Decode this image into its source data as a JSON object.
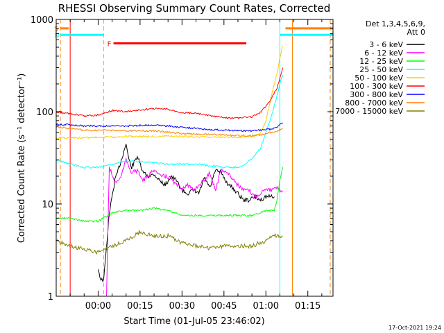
{
  "chart_data": {
    "type": "line",
    "title": "RHESSI Observing Summary Count Rates, Corrected",
    "xlabel": "Start Time (01-Jul-05 23:46:02)",
    "ylabel": "Corrected Count Rate (s⁻¹ detector⁻¹)",
    "ylog": true,
    "ylim": [
      1,
      1000
    ],
    "xlim_min": [
      -15,
      24
    ],
    "x_ticks": [
      {
        "t": 0,
        "label": "00:00"
      },
      {
        "t": 15,
        "label": "00:15"
      },
      {
        "t": 30,
        "label": "00:30"
      },
      {
        "t": 45,
        "label": "00:45"
      },
      {
        "t": 60,
        "label": "01:00"
      },
      {
        "t": 75,
        "label": "01:15"
      }
    ],
    "y_ticks": [
      {
        "v": 1,
        "label": "1"
      },
      {
        "v": 10,
        "label": "10"
      },
      {
        "v": 100,
        "label": "100"
      },
      {
        "v": 1000,
        "label": "1000"
      }
    ],
    "legend_title": [
      "Det 1,3,4,5,6,9,",
      "Att 0"
    ],
    "legend_position": "right",
    "timestamp": "17-Oct-2021 19:24",
    "flags": [
      {
        "label": "S",
        "color": "#ff8000",
        "t0": -13.5,
        "t1": -10.5,
        "level": 800
      },
      {
        "label": "N",
        "color": "#00ffff",
        "t0": -13.5,
        "t1": 2,
        "level": 680
      },
      {
        "label": "F",
        "color": "#ff0000",
        "t0": 5.5,
        "t1": 53,
        "level": 550
      },
      {
        "label": "",
        "color": "#ff8000",
        "t0": 67,
        "t1": 84,
        "level": 800
      },
      {
        "label": "",
        "color": "#00ffff",
        "t0": 65,
        "t1": 84,
        "level": 680
      }
    ],
    "vlines": [
      {
        "t": -13.5,
        "color": "#ff8000",
        "dash": true
      },
      {
        "t": -10,
        "color": "#ff0000",
        "dash": false
      },
      {
        "t": 2,
        "color": "#00ffff",
        "dash": true
      },
      {
        "t": 65,
        "color": "#00ffff",
        "dash": false
      },
      {
        "t": 69.5,
        "color": "#ff8000",
        "dash": false
      },
      {
        "t": 83,
        "color": "#ff8000",
        "dash": true
      }
    ],
    "series": [
      {
        "name": "3 - 6 keV",
        "color": "#000000",
        "x": [
          0,
          1,
          2,
          4,
          6,
          8,
          10,
          11,
          12,
          14,
          16,
          18,
          20,
          22,
          24,
          26,
          28,
          30,
          32,
          34,
          36,
          38,
          40,
          42,
          44,
          46,
          48,
          50,
          52,
          54,
          56,
          58,
          60,
          62,
          63
        ],
        "y": [
          2,
          1.5,
          1.5,
          8,
          18,
          28,
          45,
          30,
          25,
          33,
          22,
          20,
          21,
          18,
          16,
          20,
          18,
          14,
          13,
          14,
          13,
          19,
          15,
          23,
          22,
          17,
          15,
          13,
          11,
          11,
          12,
          11,
          12,
          12,
          12
        ]
      },
      {
        "name": "6 - 12 keV",
        "color": "#ff00ff",
        "x": [
          3,
          4,
          6,
          8,
          10,
          12,
          14,
          16,
          18,
          20,
          22,
          24,
          26,
          28,
          30,
          32,
          34,
          36,
          38,
          40,
          42,
          44,
          46,
          48,
          50,
          52,
          54,
          56,
          58,
          60,
          62,
          64,
          65,
          66
        ],
        "y": [
          1,
          25,
          17,
          19,
          30,
          22,
          23,
          18,
          20,
          24,
          20,
          20,
          19,
          16,
          15,
          16,
          14,
          16,
          18,
          22,
          14,
          24,
          22,
          19,
          16,
          14,
          14,
          12,
          13,
          15,
          14,
          15,
          14,
          14
        ]
      },
      {
        "name": "12 - 25 keV",
        "color": "#00ff00",
        "x": [
          -15,
          -10,
          -5,
          0,
          5,
          10,
          15,
          20,
          25,
          30,
          35,
          40,
          45,
          50,
          55,
          60,
          63,
          64,
          65,
          66
        ],
        "y": [
          7,
          7,
          6.5,
          6.5,
          8,
          8.5,
          8.5,
          9,
          8.5,
          7.5,
          7.5,
          7.5,
          7.5,
          7.5,
          7.5,
          8.5,
          8.5,
          11,
          18,
          25
        ]
      },
      {
        "name": "25 - 50 keV",
        "color": "#00ffff",
        "x": [
          -15,
          -10,
          -5,
          0,
          5,
          10,
          15,
          20,
          25,
          30,
          35,
          40,
          45,
          50,
          52,
          55,
          58,
          60,
          62,
          64,
          65,
          66
        ],
        "y": [
          30,
          27,
          25,
          25,
          27,
          29,
          29,
          28,
          27,
          27,
          27,
          26,
          25,
          25,
          26,
          31,
          40,
          60,
          90,
          150,
          200,
          250
        ]
      },
      {
        "name": "50 - 100 keV",
        "color": "#ffcc00",
        "x": [
          -15,
          -10,
          -5,
          0,
          5,
          10,
          20,
          30,
          40,
          50,
          55,
          58,
          60,
          62,
          64,
          65,
          66
        ],
        "y": [
          52,
          52,
          52,
          53,
          53,
          54,
          54,
          54,
          53,
          53,
          54,
          58,
          80,
          150,
          260,
          380,
          520
        ]
      },
      {
        "name": "100 - 300 keV",
        "color": "#ff0000",
        "x": [
          -15,
          -10,
          -5,
          0,
          5,
          10,
          15,
          20,
          25,
          30,
          35,
          40,
          45,
          50,
          55,
          58,
          60,
          62,
          64,
          65,
          66
        ],
        "y": [
          100,
          95,
          90,
          92,
          103,
          100,
          104,
          108,
          106,
          98,
          96,
          90,
          86,
          85,
          88,
          98,
          115,
          140,
          180,
          230,
          300
        ]
      },
      {
        "name": "300 - 800 keV",
        "color": "#0000ff",
        "x": [
          -15,
          -10,
          -5,
          0,
          5,
          10,
          20,
          30,
          40,
          50,
          55,
          58,
          60,
          62,
          64,
          65,
          66
        ],
        "y": [
          73,
          72,
          70,
          70,
          70,
          70,
          72,
          68,
          64,
          62,
          62,
          63,
          64,
          65,
          68,
          72,
          76
        ]
      },
      {
        "name": "800 - 7000 keV",
        "color": "#ff8000",
        "x": [
          -15,
          -10,
          -5,
          0,
          5,
          10,
          20,
          30,
          40,
          50,
          55,
          58,
          60,
          62,
          64,
          65,
          66
        ],
        "y": [
          68,
          66,
          63,
          63,
          63,
          62,
          62,
          58,
          57,
          55,
          55,
          56,
          58,
          60,
          62,
          64,
          66
        ]
      },
      {
        "name": "7000 - 15000 keV",
        "color": "#808000",
        "x": [
          -15,
          -10,
          -5,
          0,
          5,
          10,
          15,
          20,
          25,
          30,
          35,
          40,
          45,
          50,
          55,
          60,
          63,
          64,
          65,
          66
        ],
        "y": [
          4,
          3.5,
          3.2,
          3,
          3.5,
          4,
          5,
          4.5,
          4.5,
          3.8,
          3.5,
          3.3,
          3.5,
          3.5,
          3.5,
          4,
          4.5,
          4.5,
          4.5,
          4.5
        ]
      }
    ]
  }
}
